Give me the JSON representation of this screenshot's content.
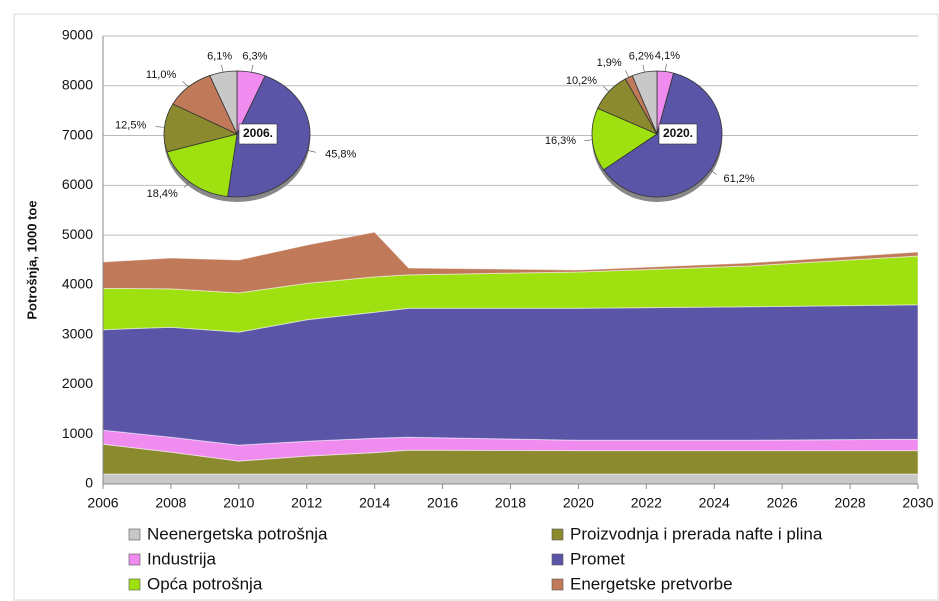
{
  "chart_data": [
    {
      "type": "area",
      "ylabel": "Potrošnja, 1000 toe",
      "x": [
        2006,
        2008,
        2010,
        2012,
        2014,
        2015,
        2020,
        2025,
        2030
      ],
      "xlim": [
        2006,
        2030
      ],
      "xticks": [
        2006,
        2008,
        2010,
        2012,
        2014,
        2016,
        2018,
        2020,
        2022,
        2024,
        2026,
        2028,
        2030
      ],
      "ylim": [
        0,
        9000
      ],
      "yticks": [
        0,
        1000,
        2000,
        3000,
        4000,
        5000,
        6000,
        7000,
        8000,
        9000
      ],
      "grid": true,
      "legend": "bottom",
      "series": [
        {
          "name": "Neenergetska potrošnja",
          "color": "#c8c8c8",
          "values": [
            200,
            200,
            200,
            200,
            200,
            200,
            200,
            200,
            200
          ]
        },
        {
          "name": "Proizvodnja i prerada nafte i plina",
          "color": "#8b8a2e",
          "values": [
            600,
            440,
            260,
            360,
            430,
            480,
            470,
            470,
            470
          ]
        },
        {
          "name": "Industrija",
          "color": "#f08cf0",
          "values": [
            280,
            300,
            320,
            300,
            290,
            260,
            210,
            210,
            230
          ]
        },
        {
          "name": "Promet",
          "color": "#5b55a8",
          "values": [
            2020,
            2210,
            2270,
            2440,
            2530,
            2590,
            2650,
            2680,
            2700
          ]
        },
        {
          "name": "Opća potrošnja",
          "color": "#9ee010",
          "values": [
            830,
            770,
            790,
            730,
            710,
            670,
            730,
            820,
            980
          ]
        },
        {
          "name": "Energetske pretvorbe",
          "color": "#c07a5a",
          "values": [
            530,
            620,
            660,
            770,
            900,
            140,
            40,
            60,
            80
          ]
        }
      ]
    },
    {
      "type": "pie",
      "title": "2006.",
      "values": [
        6.3,
        45.8,
        18.4,
        12.5,
        11.0,
        6.1
      ],
      "value_labels": [
        "6,3%",
        "45,8%",
        "18,4%",
        "12,5%",
        "11,0%",
        "6,1%"
      ],
      "colors": [
        "#f08cf0",
        "#5b55a8",
        "#9ee010",
        "#8b8a2e",
        "#c07a5a",
        "#c8c8c8"
      ]
    },
    {
      "type": "pie",
      "title": "2020.",
      "values": [
        4.1,
        61.2,
        16.3,
        10.2,
        1.9,
        6.2
      ],
      "value_labels": [
        "4,1%",
        "61,2%",
        "16,3%",
        "10,2%",
        "1,9%",
        "6,2%"
      ],
      "colors": [
        "#f08cf0",
        "#5b55a8",
        "#9ee010",
        "#8b8a2e",
        "#c07a5a",
        "#c8c8c8"
      ]
    }
  ]
}
